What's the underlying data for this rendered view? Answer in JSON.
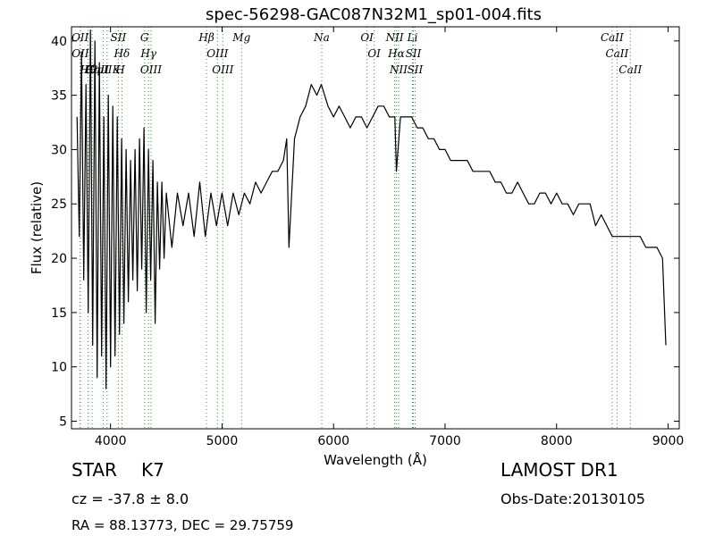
{
  "chart_data": {
    "type": "line",
    "title": "spec-56298-GAC087N32M1_sp01-004.fits",
    "xlabel": "Wavelength (Å)",
    "ylabel": "Flux (relative)",
    "xlim": [
      3650,
      9100
    ],
    "ylim": [
      4.3,
      41.3
    ],
    "x_ticks": [
      4000,
      5000,
      6000,
      7000,
      8000,
      9000
    ],
    "y_ticks": [
      5,
      10,
      15,
      20,
      25,
      30,
      35,
      40
    ],
    "grid": false,
    "line_color": "#000000",
    "marker_line_color": "#2ca02c",
    "series": [
      {
        "x": [
          3700,
          3720,
          3740,
          3760,
          3780,
          3800,
          3820,
          3840,
          3860,
          3880,
          3900,
          3920,
          3940,
          3960,
          3980,
          4000,
          4020,
          4040,
          4060,
          4080,
          4100,
          4120,
          4140,
          4160,
          4180,
          4200,
          4220,
          4240,
          4260,
          4280,
          4300,
          4320,
          4340,
          4360,
          4380,
          4400,
          4420,
          4440,
          4460,
          4480,
          4500,
          4550,
          4600,
          4650,
          4700,
          4750,
          4800,
          4850,
          4900,
          4950,
          5000,
          5050,
          5100,
          5150,
          5200,
          5250,
          5300,
          5350,
          5400,
          5450,
          5500,
          5550,
          5580,
          5600,
          5650,
          5700,
          5750,
          5800,
          5850,
          5890,
          5950,
          6000,
          6050,
          6100,
          6150,
          6200,
          6250,
          6300,
          6350,
          6400,
          6450,
          6500,
          6550,
          6563,
          6600,
          6650,
          6700,
          6750,
          6800,
          6850,
          6900,
          6950,
          7000,
          7050,
          7100,
          7150,
          7200,
          7250,
          7300,
          7350,
          7400,
          7450,
          7500,
          7550,
          7600,
          7650,
          7700,
          7750,
          7800,
          7850,
          7900,
          7950,
          8000,
          8050,
          8100,
          8150,
          8200,
          8250,
          8300,
          8350,
          8400,
          8450,
          8500,
          8550,
          8600,
          8650,
          8700,
          8750,
          8800,
          8850,
          8900,
          8950,
          8980
        ],
        "values": [
          33,
          22,
          39,
          18,
          36,
          15,
          41,
          12,
          40,
          9,
          38,
          11,
          33,
          8,
          35,
          10,
          34,
          11,
          33,
          13,
          31,
          14,
          30,
          16,
          29,
          18,
          30,
          17,
          31,
          19,
          32,
          15,
          30,
          18,
          29,
          14,
          27,
          19,
          27,
          20,
          26,
          21,
          26,
          23,
          26,
          22,
          27,
          22,
          26,
          23,
          26,
          23,
          26,
          24,
          26,
          25,
          27,
          26,
          27,
          28,
          28,
          29,
          31,
          21,
          31,
          33,
          34,
          36,
          35,
          36,
          34,
          33,
          34,
          33,
          32,
          33,
          33,
          32,
          33,
          34,
          34,
          33,
          33,
          28,
          33,
          33,
          33,
          32,
          32,
          31,
          31,
          30,
          30,
          29,
          29,
          29,
          29,
          28,
          28,
          28,
          28,
          27,
          27,
          26,
          26,
          27,
          26,
          25,
          25,
          26,
          26,
          25,
          26,
          25,
          25,
          24,
          25,
          25,
          25,
          23,
          24,
          23,
          22,
          22,
          22,
          22,
          22,
          22,
          21,
          21,
          21,
          20,
          12
        ]
      }
    ],
    "line_markers": [
      {
        "label": "OII",
        "x": 3727
      },
      {
        "label": "OII",
        "x": 3729
      },
      {
        "label": "Hθ",
        "x": 3798
      },
      {
        "label": "Hη",
        "x": 3835
      },
      {
        "label": "CaII K",
        "x": 3934
      },
      {
        "label": "CaII H",
        "x": 3969
      },
      {
        "label": "SII",
        "x": 4070
      },
      {
        "label": "Hδ",
        "x": 4102
      },
      {
        "label": "G",
        "x": 4305
      },
      {
        "label": "Hγ",
        "x": 4341
      },
      {
        "label": "OIII",
        "x": 4363
      },
      {
        "label": "Hβ",
        "x": 4861
      },
      {
        "label": "OIII",
        "x": 4959
      },
      {
        "label": "OIII",
        "x": 5007
      },
      {
        "label": "Mg",
        "x": 5175
      },
      {
        "label": "Na",
        "x": 5894
      },
      {
        "label": "OI",
        "x": 6300
      },
      {
        "label": "OI",
        "x": 6364
      },
      {
        "label": "NII",
        "x": 6548
      },
      {
        "label": "Hα",
        "x": 6563
      },
      {
        "label": "NII",
        "x": 6583
      },
      {
        "label": "Li",
        "x": 6708
      },
      {
        "label": "SII",
        "x": 6716
      },
      {
        "label": "SII",
        "x": 6731
      },
      {
        "label": "CaII",
        "x": 8498
      },
      {
        "label": "CaII",
        "x": 8542
      },
      {
        "label": "CaII",
        "x": 8662
      }
    ]
  },
  "info": {
    "object_class": "STAR",
    "subclass": "K7",
    "survey": "LAMOST DR1",
    "redshift_text": "cz = -37.8 ± 8.0",
    "obs_date_text": "Obs-Date:20130105",
    "coords_text": "RA = 88.13773, DEC = 29.75759"
  }
}
